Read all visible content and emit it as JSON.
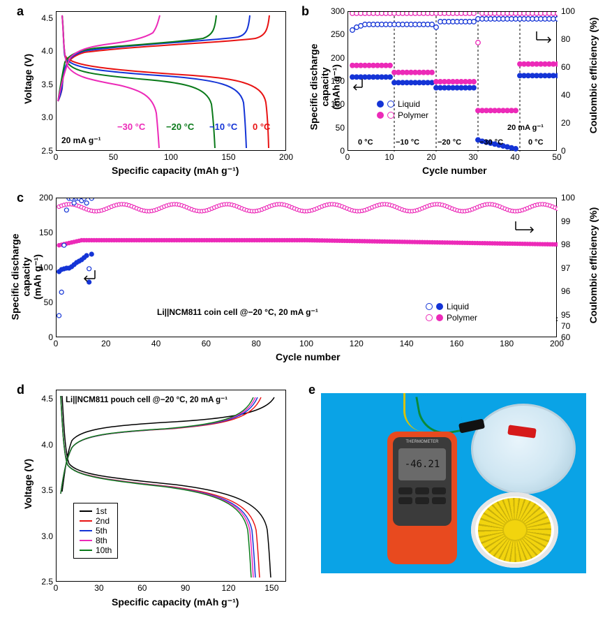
{
  "panelA": {
    "label": "a",
    "xlabel": "Specific capacity (mAh g⁻¹)",
    "ylabel": "Voltage (V)",
    "xlim": [
      0,
      200
    ],
    "ylim": [
      2.5,
      4.6
    ],
    "xticks": [
      0,
      50,
      100,
      150,
      200
    ],
    "yticks": [
      "2.5",
      "3.0",
      "3.5",
      "4.0",
      "4.5"
    ],
    "annot_rate": "20 mA g⁻¹",
    "series": [
      {
        "label": "−30 °C",
        "color": "#ec2ab8",
        "cap_max": 90
      },
      {
        "label": "−20 °C",
        "color": "#0a7a1a",
        "cap_max": 140
      },
      {
        "label": "−10 °C",
        "color": "#1434d6",
        "cap_max": 165
      },
      {
        "label": "0 °C",
        "color": "#e81313",
        "cap_max": 185
      }
    ]
  },
  "panelB": {
    "label": "b",
    "xlabel": "Cycle number",
    "ylabel": "Specific discharge capacity\n(mAh g⁻¹)",
    "ylabel2": "Coulombic efficiency (%)",
    "xlim": [
      0,
      50
    ],
    "ylim": [
      0,
      300
    ],
    "ylim2": [
      0,
      100
    ],
    "xticks": [
      0,
      10,
      20,
      30,
      40,
      50
    ],
    "yticks": [
      0,
      50,
      100,
      150,
      200,
      250,
      300
    ],
    "yticks2": [
      0,
      20,
      40,
      60,
      80,
      100
    ],
    "sections": [
      "0 °C",
      "−10 °C",
      "−20 °C",
      "−30 °C",
      "0 °C"
    ],
    "section_dividers": [
      11,
      21,
      31,
      41
    ],
    "legend": [
      {
        "label": "Liquid",
        "color": "#1434d6"
      },
      {
        "label": "Polymer",
        "color": "#ec2ab8"
      }
    ],
    "annot_rate": "20 mA g⁻¹",
    "data": {
      "polymer_cap": [
        185,
        185,
        185,
        185,
        185,
        185,
        185,
        185,
        185,
        185,
        170,
        170,
        170,
        170,
        170,
        170,
        170,
        170,
        170,
        170,
        150,
        150,
        150,
        150,
        150,
        150,
        150,
        150,
        150,
        150,
        88,
        88,
        88,
        88,
        88,
        88,
        88,
        88,
        88,
        88,
        188,
        188,
        188,
        188,
        188,
        188,
        188,
        188,
        188,
        188
      ],
      "liquid_cap": [
        160,
        160,
        160,
        160,
        160,
        160,
        160,
        160,
        160,
        160,
        148,
        148,
        148,
        148,
        148,
        148,
        148,
        148,
        148,
        148,
        137,
        137,
        137,
        137,
        137,
        137,
        137,
        137,
        137,
        137,
        25,
        22,
        20,
        18,
        16,
        14,
        12,
        10,
        8,
        6,
        163,
        163,
        163,
        163,
        163,
        163,
        163,
        163,
        163,
        163
      ],
      "polymer_eff": [
        99,
        99,
        99,
        99,
        99,
        99,
        99,
        99,
        99,
        99,
        99,
        99,
        99,
        99,
        99,
        99,
        99,
        99,
        99,
        99,
        99,
        99,
        99,
        99,
        99,
        99,
        99,
        99,
        99,
        99,
        78,
        99,
        99,
        99,
        99,
        99,
        99,
        99,
        99,
        99,
        99,
        99,
        99,
        99,
        99,
        99,
        99,
        99,
        99,
        99
      ],
      "liquid_eff": [
        87,
        89,
        90,
        91,
        91,
        91,
        91,
        91,
        91,
        91,
        91,
        91,
        91,
        91,
        91,
        91,
        91,
        91,
        91,
        91,
        89,
        93,
        93,
        93,
        93,
        93,
        93,
        93,
        93,
        93,
        95,
        95,
        95,
        95,
        95,
        95,
        95,
        95,
        95,
        95,
        95,
        95,
        95,
        95,
        95,
        95,
        95,
        95,
        95,
        95
      ]
    }
  },
  "panelC": {
    "label": "c",
    "xlabel": "Cycle number",
    "ylabel": "Specific discharge capacity\n(mAh g⁻¹)",
    "ylabel2": "Coulombic efficiency (%)",
    "xlim": [
      0,
      200
    ],
    "ylim": [
      0,
      200
    ],
    "ylim2_upper": [
      95,
      100
    ],
    "ylim2_lower": [
      60,
      70
    ],
    "xticks": [
      0,
      20,
      40,
      60,
      80,
      100,
      120,
      140,
      160,
      180,
      200
    ],
    "yticks": [
      0,
      50,
      100,
      150,
      200
    ],
    "yticks2": [
      60,
      70,
      95,
      96,
      97,
      98,
      99,
      100
    ],
    "annot": "Li||NCM811 coin cell @−20 °C, 20 mA g⁻¹",
    "legend": [
      {
        "label": "Liquid",
        "color": "#1434d6"
      },
      {
        "label": "Polymer",
        "color": "#ec2ab8"
      }
    ]
  },
  "panelD": {
    "label": "d",
    "xlabel": "Specific capacity (mAh g⁻¹)",
    "ylabel": "Voltage (V)",
    "xlim": [
      0,
      160
    ],
    "ylim": [
      2.5,
      4.6
    ],
    "xticks": [
      0,
      30,
      60,
      90,
      120,
      150
    ],
    "yticks": [
      "2.5",
      "3.0",
      "3.5",
      "4.0",
      "4.5"
    ],
    "annot": "Li||NCM811 pouch cell @−20 °C,   20 mA g⁻¹",
    "series": [
      {
        "label": "1st",
        "color": "#000000"
      },
      {
        "label": "2nd",
        "color": "#e81313"
      },
      {
        "label": "5th",
        "color": "#1434d6"
      },
      {
        "label": "8th",
        "color": "#ec2ab8"
      },
      {
        "label": "10th",
        "color": "#0a7a1a"
      }
    ]
  },
  "panelE": {
    "label": "e",
    "meter_reading": "-46.21",
    "meter_title": "THERMOMETER",
    "background_color": "#0aa3e6",
    "meter_body_color": "#e84a1f",
    "fan_color": "#f2d40e"
  },
  "colors": {
    "magenta": "#ec2ab8",
    "blue": "#1434d6",
    "red": "#e81313",
    "green": "#0a7a1a",
    "black": "#000000"
  }
}
